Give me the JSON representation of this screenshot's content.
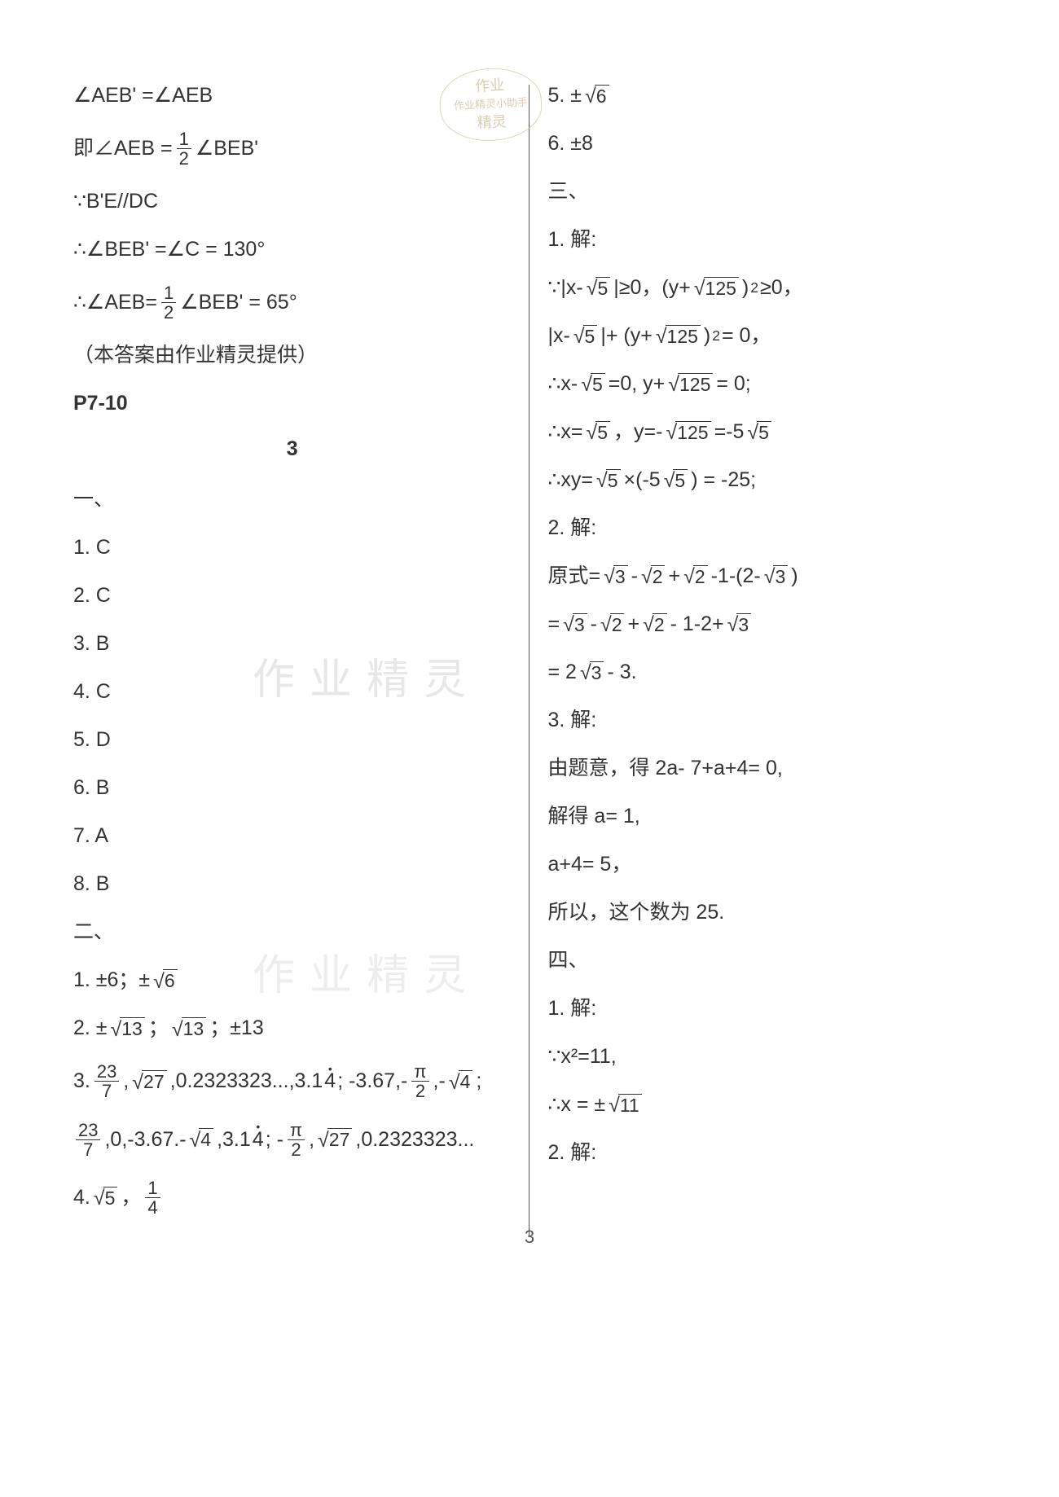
{
  "page_number": "3",
  "watermarks": {
    "stamp_top": "作业",
    "stamp_mid": "作业精灵小助手",
    "stamp_bot": "精灵",
    "wm1": "作业精灵",
    "wm2": "作业精灵"
  },
  "left": {
    "l1_a": "∠AEB' =∠AEB",
    "l2_a": "即∠AEB = ",
    "l2_b": "∠BEB'",
    "l3": "∵B'E//DC",
    "l4": "∴∠BEB' =∠C = 130°",
    "l5_a": "∴∠AEB= ",
    "l5_b": "∠BEB' = 65°",
    "l6": "（本答案由作业精灵提供）",
    "l7": "P7-10",
    "sec": "3",
    "s1": "一、",
    "mc": [
      "1.  C",
      "2.  C",
      "3.  B",
      "4.  C",
      "5.  D",
      "6.  B",
      "7.  A",
      "8.  B"
    ],
    "s2": "二、",
    "f1_a": "1.  ±6；±",
    "f1_sqrt": "6",
    "f2_a": "2.  ±",
    "f2_s1": "13",
    "f2_b": "；",
    "f2_s2": "13",
    "f2_c": "；±13",
    "f3_a": "3.  ",
    "f3_fr1_n": "23",
    "f3_fr1_d": "7",
    "f3_b": ",",
    "f3_s1": "27",
    "f3_c": ",0.2323323...,3.1",
    "f3_dot1": "4",
    "f3_d": " ; -3.67,-",
    "f3_fr2_n": "π",
    "f3_fr2_d": "2",
    "f3_e": ",-",
    "f3_s2": "4",
    "f3_f": " ;",
    "f3l2_fr1_n": "23",
    "f3l2_fr1_d": "7",
    "f3l2_a": ",0,-3.67.-",
    "f3l2_s1": "4",
    "f3l2_b": ",3.1",
    "f3l2_dot": "4",
    "f3l2_c": " ;  -",
    "f3l2_fr2_n": "π",
    "f3l2_fr2_d": "2",
    "f3l2_d": ",",
    "f3l2_s2": "27",
    "f3l2_e": ",0.2323323...",
    "f4_a": "4.  ",
    "f4_s": "5",
    "f4_b": " ，",
    "f4_fn": "1",
    "f4_fd": "4"
  },
  "right": {
    "r1_a": "5.  ±",
    "r1_s": "6",
    "r2": "6.  ±8",
    "s3": "三、",
    "r3": "1.  解:",
    "r4_a": "∵|x- ",
    "r4_s1": "5",
    "r4_b": " |≥0，(y+ ",
    "r4_s2": "125",
    "r4_c": " )",
    "r4_sup": "2",
    "r4_d": " ≥0，",
    "r5_a": "|x- ",
    "r5_s1": "5",
    "r5_b": " |+ (y+ ",
    "r5_s2": "125",
    "r5_c": " )",
    "r5_sup": "2",
    "r5_d": "= 0，",
    "r6_a": "∴x- ",
    "r6_s1": "5",
    "r6_b": " =0, y+ ",
    "r6_s2": "125",
    "r6_c": " = 0;",
    "r7_a": "∴x= ",
    "r7_s1": "5",
    "r7_b": " ，y=- ",
    "r7_s2": "125",
    "r7_c": " =-5 ",
    "r7_s3": "5",
    "r8_a": "∴xy= ",
    "r8_s1": "5",
    "r8_b": " ×(-5 ",
    "r8_s2": "5",
    "r8_c": " ) = -25;",
    "r9": "2.  解:",
    "r10_a": "原式= ",
    "r10_s1": "3",
    "r10_b": " - ",
    "r10_s2": "2",
    "r10_c": " + ",
    "r10_s3": "2",
    "r10_d": " -1-(2- ",
    "r10_s4": "3",
    "r10_e": " )",
    "r11_a": "= ",
    "r11_s1": "3",
    "r11_b": " - ",
    "r11_s2": "2",
    "r11_c": " + ",
    "r11_s3": "2",
    "r11_d": " - 1-2+ ",
    "r11_s4": "3",
    "r12_a": "= 2 ",
    "r12_s": "3",
    "r12_b": " - 3.",
    "r13": "3.  解:",
    "r14": "由题意，得 2a- 7+a+4= 0,",
    "r15": "解得 a= 1,",
    "r16": "a+4= 5，",
    "r17": "所以，这个数为 25.",
    "s4": "四、",
    "r18": "1.  解:",
    "r19": "∵x²=11,",
    "r20_a": "∴x = ± ",
    "r20_s": "11",
    "r21": "2.  解:"
  }
}
